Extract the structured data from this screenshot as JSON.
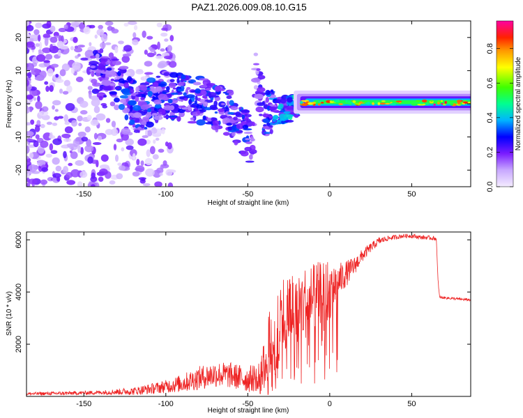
{
  "title": "PAZ1.2026.009.08.10.G15",
  "chart_data": [
    {
      "type": "heatmap",
      "panel": "top",
      "xlabel": "Height of straight line (km)",
      "ylabel": "Frequency (Hz)",
      "xlim": [
        -185,
        86
      ],
      "ylim": [
        -25,
        25
      ],
      "xticks": [
        -150,
        -100,
        -50,
        0,
        50
      ],
      "yticks": [
        -20,
        -10,
        0,
        10,
        20
      ],
      "colorbar": {
        "label": "Normalized spectral amplitude",
        "range": [
          0,
          0.96
        ],
        "ticks": [
          0.0,
          0.2,
          0.4,
          0.6,
          0.8
        ],
        "colors": [
          "#f0e8ff",
          "#c9a0ff",
          "#8a2be2",
          "#6a00ff",
          "#0000ff",
          "#00bfff",
          "#00ff80",
          "#40ff00",
          "#ffff00",
          "#ff8000",
          "#ff0000",
          "#ff00a0"
        ]
      },
      "ridge": [
        {
          "h": -140,
          "f": 8.5,
          "a": 0.25
        },
        {
          "h": -128,
          "f": 6,
          "a": 0.3
        },
        {
          "h": -118,
          "f": -2,
          "a": 0.3
        },
        {
          "h": -100,
          "f": 3,
          "a": 0.3
        },
        {
          "h": -80,
          "f": 1,
          "a": 0.3
        },
        {
          "h": -60,
          "f": -3,
          "a": 0.3
        },
        {
          "h": -47,
          "f": -12,
          "a": 0.3
        },
        {
          "h": -45,
          "f": 10,
          "a": 0.15
        },
        {
          "h": -40,
          "f": -3,
          "a": 0.3
        },
        {
          "h": -20,
          "f": -1,
          "a": 0.45
        },
        {
          "h": 0,
          "f": 0.5,
          "a": 0.75
        },
        {
          "h": 20,
          "f": 0.2,
          "a": 0.65
        },
        {
          "h": 50,
          "f": 0.2,
          "a": 0.5
        },
        {
          "h": 80,
          "f": 0.5,
          "a": 0.85
        }
      ]
    },
    {
      "type": "line",
      "panel": "bottom",
      "xlabel": "Height of straight line (km)",
      "ylabel": "SNR (10 * v/v)",
      "xlim": [
        -185,
        86
      ],
      "ylim": [
        0,
        6300
      ],
      "xticks": [
        -150,
        -100,
        -50,
        0,
        50
      ],
      "yticks": [
        2000,
        4000,
        6000
      ],
      "color": "#ee2222",
      "series": [
        {
          "name": "SNR",
          "x": [
            -185,
            -160,
            -140,
            -120,
            -110,
            -100,
            -90,
            -80,
            -70,
            -60,
            -50,
            -42,
            -38,
            -35,
            -32,
            -28,
            -25,
            -20,
            -15,
            -10,
            -5,
            0,
            5,
            10,
            15,
            20,
            25,
            30,
            35,
            40,
            45,
            50,
            55,
            60,
            65,
            66,
            67,
            70,
            75,
            80,
            86
          ],
          "y": [
            100,
            120,
            150,
            200,
            280,
            380,
            500,
            700,
            850,
            800,
            650,
            800,
            1400,
            2100,
            2700,
            3100,
            3400,
            3500,
            3600,
            3800,
            4000,
            4100,
            4400,
            4700,
            5000,
            5400,
            5700,
            5950,
            6050,
            6100,
            6150,
            6150,
            6100,
            6080,
            6050,
            4500,
            3800,
            3780,
            3750,
            3720,
            3700
          ],
          "noise": [
            60,
            70,
            80,
            150,
            200,
            250,
            350,
            450,
            500,
            500,
            500,
            600,
            1600,
            2000,
            2200,
            1600,
            1400,
            1400,
            1400,
            1300,
            1200,
            1200,
            700,
            500,
            350,
            250,
            180,
            150,
            100,
            90,
            80,
            80,
            80,
            80,
            80,
            60,
            50,
            50,
            50,
            50,
            50
          ]
        }
      ]
    }
  ]
}
